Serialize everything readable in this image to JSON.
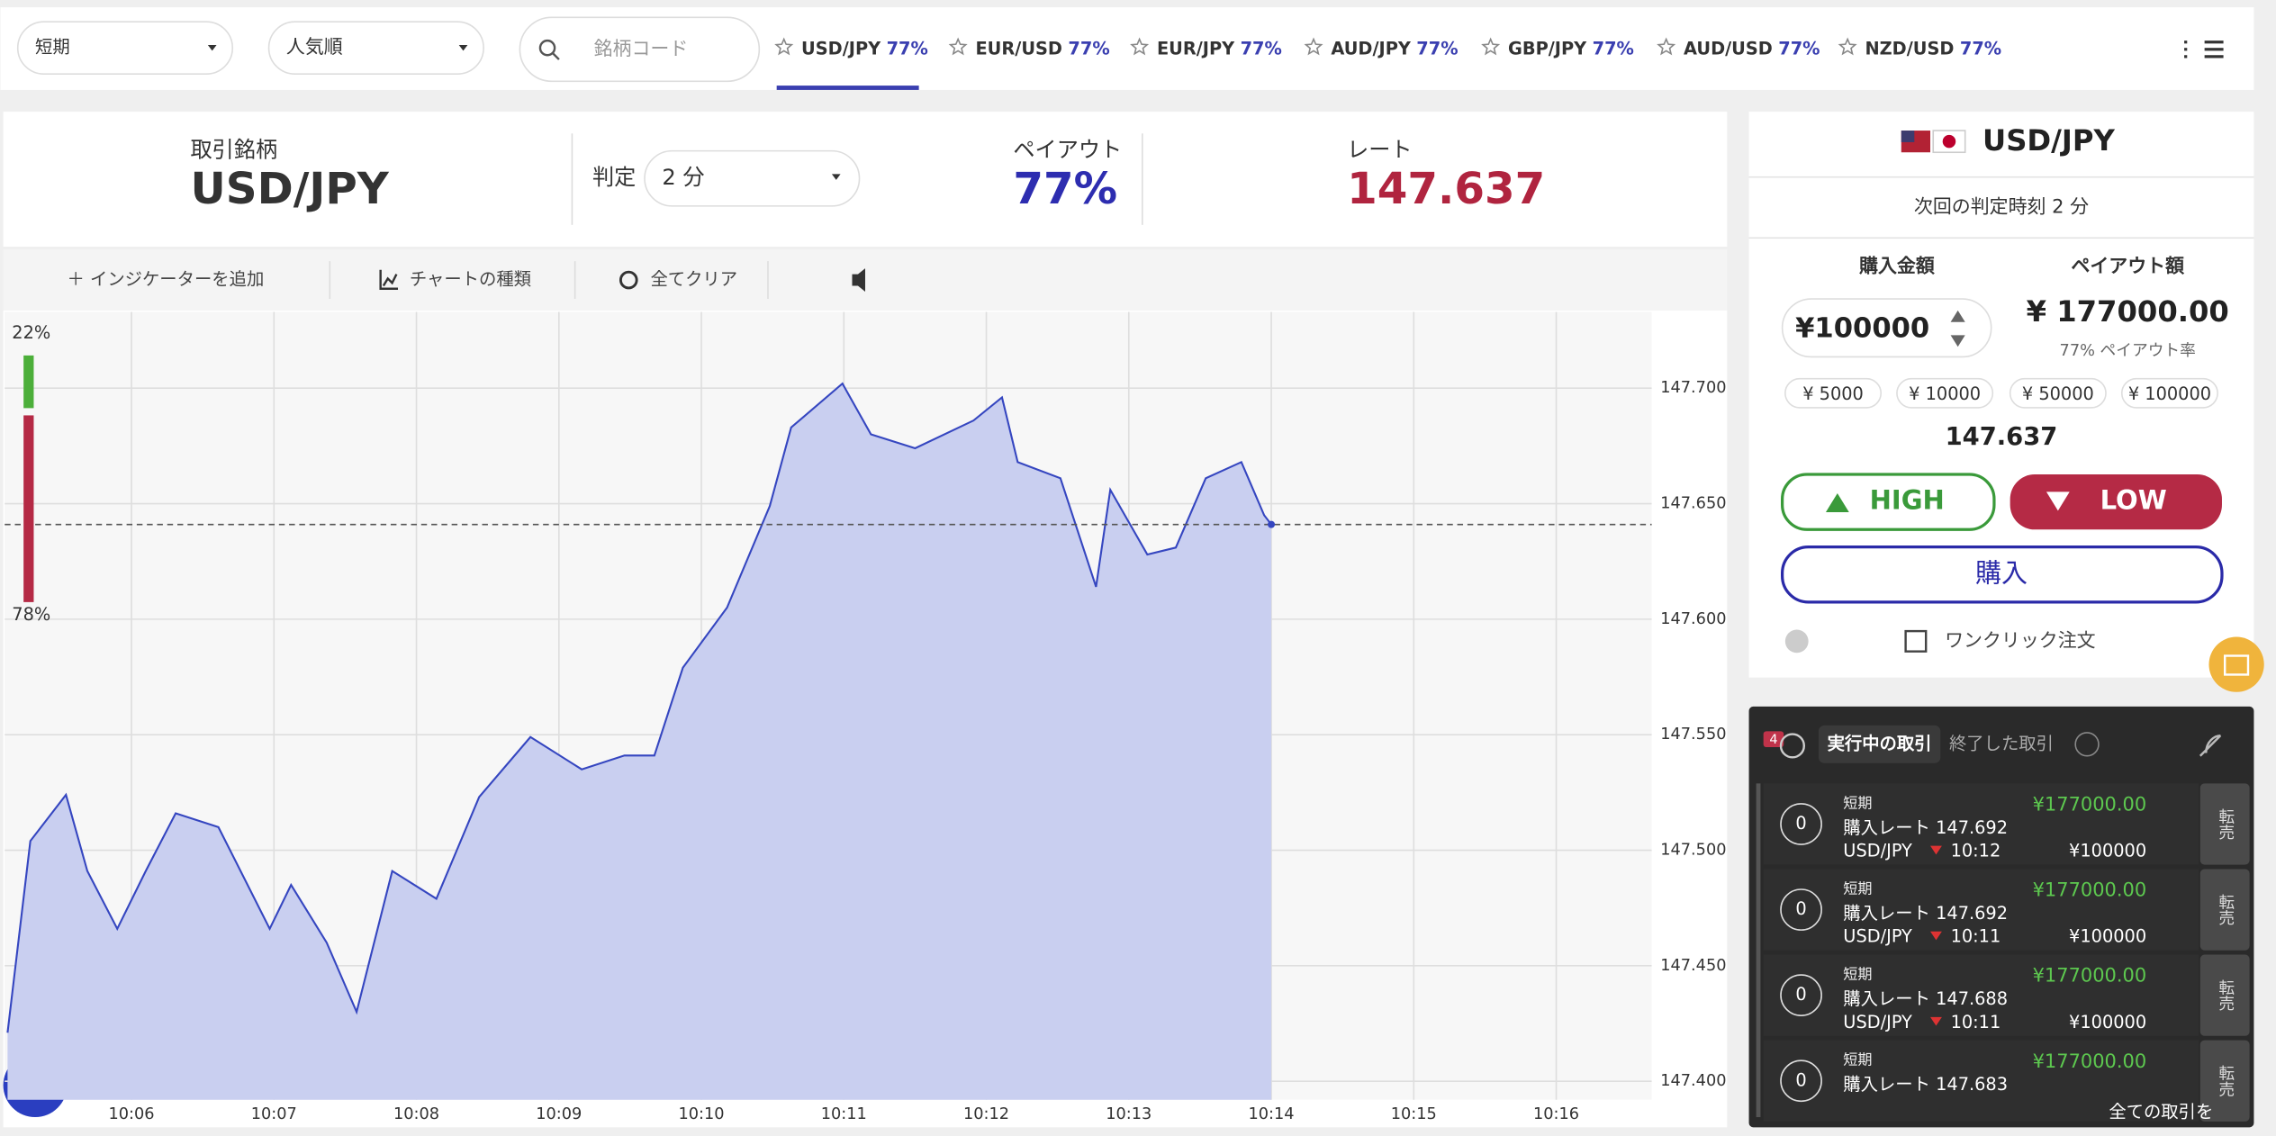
{
  "top_bar": {
    "term_select": "短期",
    "sort_select": "人気順",
    "search_placeholder": "銘柄コード",
    "tabs": [
      {
        "pair": "USD/JPY",
        "payout": "77%"
      },
      {
        "pair": "EUR/USD",
        "payout": "77%"
      },
      {
        "pair": "EUR/JPY",
        "payout": "77%"
      },
      {
        "pair": "AUD/JPY",
        "payout": "77%"
      },
      {
        "pair": "GBP/JPY",
        "payout": "77%"
      },
      {
        "pair": "AUD/USD",
        "payout": "77%"
      },
      {
        "pair": "NZD/USD",
        "payout": "77%"
      }
    ]
  },
  "header": {
    "symbol_label": "取引銘柄",
    "symbol": "USD/JPY",
    "judge_label": "判定",
    "judge_select": "2 分",
    "payout_label": "ペイアウト",
    "payout": "77%",
    "rate_label": "レート",
    "rate": "147.637"
  },
  "chart_tools": {
    "add_indicator": "＋ インジケーターを追加",
    "chart_type": "チャートの種類",
    "clear_all": "全てクリア"
  },
  "chart_data": {
    "type": "area",
    "color": "#3546c0",
    "fill": "#c9cff0",
    "grid": true,
    "x": [
      5.13,
      5.29,
      5.54,
      5.69,
      5.9,
      6.1,
      6.31,
      6.61,
      6.97,
      7.12,
      7.37,
      7.58,
      7.83,
      8.14,
      8.44,
      8.8,
      9.16,
      9.46,
      9.67,
      9.87,
      10.18,
      10.48,
      10.63,
      10.99,
      11.19,
      11.5,
      11.91,
      12.11,
      12.22,
      12.52,
      12.77,
      12.87,
      13.13,
      13.33,
      13.54,
      13.79,
      13.95,
      14.0
    ],
    "values": [
      147.421,
      147.504,
      147.524,
      147.491,
      147.466,
      147.491,
      147.516,
      147.51,
      147.466,
      147.485,
      147.46,
      147.43,
      147.491,
      147.479,
      147.523,
      147.549,
      147.535,
      147.541,
      147.541,
      147.579,
      147.605,
      147.649,
      147.683,
      147.702,
      147.68,
      147.674,
      147.686,
      147.696,
      147.668,
      147.661,
      147.614,
      147.656,
      147.628,
      147.631,
      147.661,
      147.668,
      147.645,
      147.641
    ],
    "xlim": [
      5.11,
      16.67
    ],
    "ylim": [
      147.392,
      147.733
    ],
    "xticks": [
      {
        "value": 6,
        "label": "10:06"
      },
      {
        "value": 7,
        "label": "10:07"
      },
      {
        "value": 8,
        "label": "10:08"
      },
      {
        "value": 9,
        "label": "10:09"
      },
      {
        "value": 10,
        "label": "10:10"
      },
      {
        "value": 11,
        "label": "10:11"
      },
      {
        "value": 12,
        "label": "10:12"
      },
      {
        "value": 13,
        "label": "10:13"
      },
      {
        "value": 14,
        "label": "10:14"
      },
      {
        "value": 15,
        "label": "10:15"
      },
      {
        "value": 16,
        "label": "10:16"
      }
    ],
    "yticks": [
      {
        "value": 147.4,
        "label": "147.400"
      },
      {
        "value": 147.45,
        "label": "147.450"
      },
      {
        "value": 147.5,
        "label": "147.500"
      },
      {
        "value": 147.55,
        "label": "147.550"
      },
      {
        "value": 147.6,
        "label": "147.600"
      },
      {
        "value": 147.65,
        "label": "147.650"
      },
      {
        "value": 147.7,
        "label": "147.700"
      }
    ],
    "sentiment": {
      "values": [
        22,
        78
      ],
      "value_labels": [
        "22%",
        "78%"
      ],
      "colors": [
        "#4caf3a",
        "#b52a45"
      ]
    }
  },
  "order_panel": {
    "pair": "USD/JPY",
    "next_judge": "次回の判定時刻 2 分",
    "amount_label": "購入金額",
    "payout_label": "ペイアウト額",
    "amount": "¥100000",
    "payout_amount": "¥ 177000.00",
    "payout_rate": "77% ペイアウト率",
    "quick_amounts": [
      "¥ 5000",
      "¥ 10000",
      "¥ 50000",
      "¥ 100000"
    ],
    "rate": "147.637",
    "high": "HIGH",
    "low": "LOW",
    "buy": "購入",
    "one_click": "ワンクリック注文"
  },
  "trades_panel": {
    "badge": "4",
    "tab_active": "実行中の取引",
    "tab_done": "終了した取引",
    "all_trades": "全ての取引を",
    "trades": [
      {
        "count": "0",
        "term": "短期",
        "rate": "購入レート 147.692",
        "pair": "USD/JPY",
        "time": "10:12",
        "payout": "¥177000.00",
        "amount": "¥100000",
        "resell": "転売"
      },
      {
        "count": "0",
        "term": "短期",
        "rate": "購入レート 147.692",
        "pair": "USD/JPY",
        "time": "10:11",
        "payout": "¥177000.00",
        "amount": "¥100000",
        "resell": "転売"
      },
      {
        "count": "0",
        "term": "短期",
        "rate": "購入レート 147.688",
        "pair": "USD/JPY",
        "time": "10:11",
        "payout": "¥177000.00",
        "amount": "¥100000",
        "resell": "転売"
      },
      {
        "count": "0",
        "term": "短期",
        "rate": "購入レート 147.683",
        "payout": "¥177000.00",
        "resell": "転売"
      }
    ]
  }
}
